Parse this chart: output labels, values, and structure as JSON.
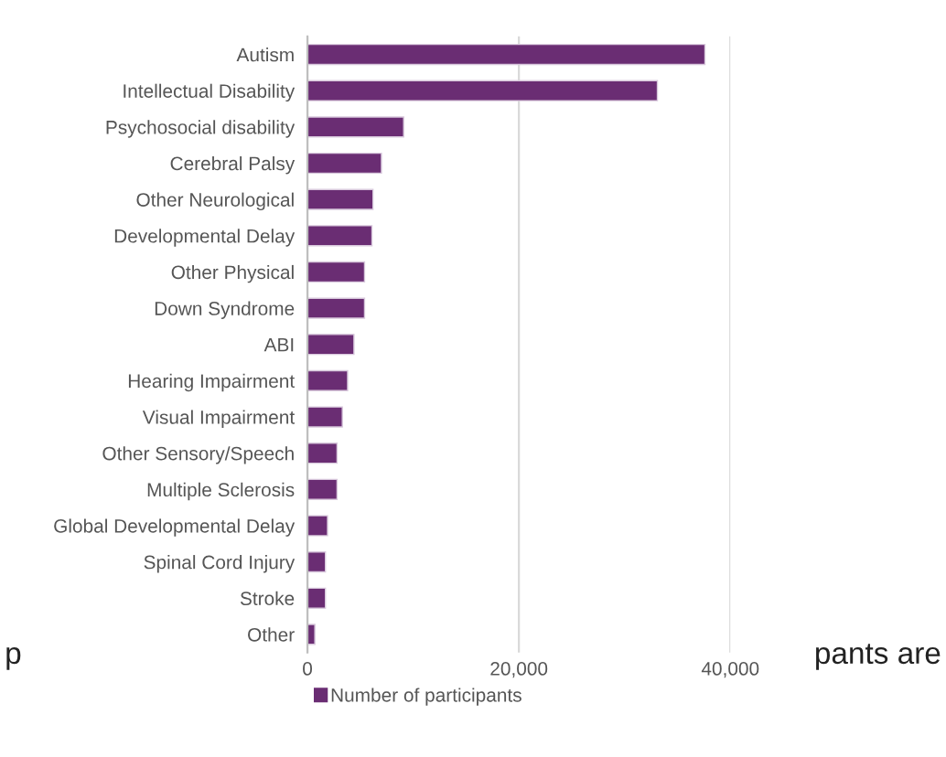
{
  "chart_data": {
    "type": "bar",
    "orientation": "horizontal",
    "categories": [
      "Autism",
      "Intellectual Disability",
      "Psychosocial disability",
      "Cerebral Palsy",
      "Other Neurological",
      "Developmental Delay",
      "Other Physical",
      "Down Syndrome",
      "ABI",
      "Hearing Impairment",
      "Visual Impairment",
      "Other Sensory/Speech",
      "Multiple Sclerosis",
      "Global Developmental Delay",
      "Spinal Cord Injury",
      "Stroke",
      "Other"
    ],
    "series": [
      {
        "name": "Number of participants",
        "color": "#6a2d73",
        "values": [
          37600,
          33100,
          9100,
          7000,
          6200,
          6100,
          5400,
          5400,
          4400,
          3800,
          3300,
          2800,
          2800,
          1900,
          1700,
          1700,
          700
        ]
      }
    ],
    "xlim": [
      0,
      40000
    ],
    "xticks": [
      {
        "value": 0,
        "label": "0"
      },
      {
        "value": 20000,
        "label": "20,000"
      },
      {
        "value": 40000,
        "label": "40,000"
      }
    ],
    "grid": "x",
    "legend": "bottom",
    "annotations": [
      "p",
      "pants are"
    ]
  }
}
